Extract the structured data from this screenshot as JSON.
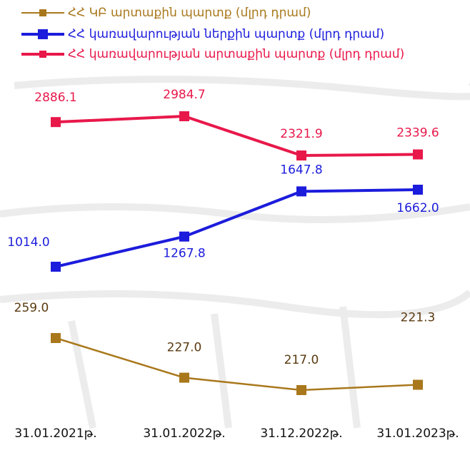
{
  "chart_data": {
    "type": "line",
    "categories": [
      "31.01.2021թ.",
      "31.01.2022թ.",
      "31.12.2022թ.",
      "31.01.2023թ."
    ],
    "series": [
      {
        "name": "ՀՀ ԿԲ արտաքին պարտք (մլրդ դրամ)",
        "color": "#a9781c",
        "values": [
          259.0,
          227.0,
          217.0,
          221.3
        ],
        "value_labels": [
          "259.0",
          "227.0",
          "217.0",
          "221.3"
        ]
      },
      {
        "name": "ՀՀ կառավարության ներքին պարտք (մլրդ դրամ)",
        "color": "#1c1cdc",
        "values": [
          1014.0,
          1267.8,
          1647.8,
          1662.0
        ],
        "value_labels": [
          "1014.0",
          "1267.8",
          "1647.8",
          "1662.0"
        ]
      },
      {
        "name": "ՀՀ կառավարության արտաքին պարտք (մլրդ դրամ)",
        "color": "#e8184a",
        "values": [
          2886.1,
          2984.7,
          2321.9,
          2339.6
        ],
        "value_labels": [
          "2886.1",
          "2984.7",
          "2321.9",
          "2339.6"
        ]
      }
    ]
  }
}
